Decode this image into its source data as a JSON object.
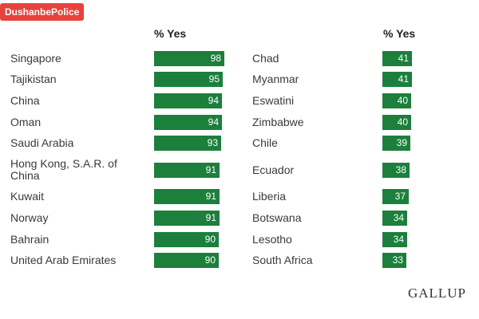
{
  "badge": "DushanbePolice",
  "brand": "GALLUP",
  "chart_data": [
    {
      "type": "bar",
      "orientation": "horizontal",
      "column_header": "% Yes",
      "categories": [
        "Singapore",
        "Tajikistan",
        "China",
        "Oman",
        "Saudi Arabia",
        "Hong Kong, S.A.R. of China",
        "Kuwait",
        "Norway",
        "Bahrain",
        "United Arab Emirates"
      ],
      "values": [
        98,
        95,
        94,
        94,
        93,
        91,
        91,
        91,
        90,
        90
      ]
    },
    {
      "type": "bar",
      "orientation": "horizontal",
      "column_header": "% Yes",
      "categories": [
        "Chad",
        "Myanmar",
        "Eswatini",
        "Zimbabwe",
        "Chile",
        "Ecuador",
        "Liberia",
        "Botswana",
        "Lesotho",
        "South Africa"
      ],
      "values": [
        41,
        41,
        40,
        40,
        39,
        38,
        37,
        34,
        34,
        33
      ]
    }
  ]
}
